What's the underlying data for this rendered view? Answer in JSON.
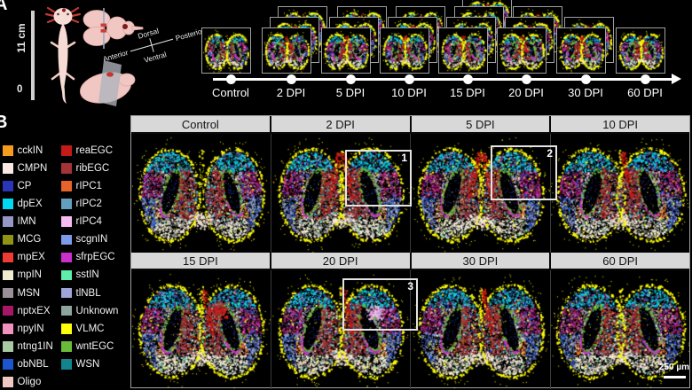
{
  "figure": {
    "panelA": {
      "label": "A",
      "animal_scale": {
        "max": "11 cm",
        "min": "0"
      },
      "compass": {
        "top": "Dorsal",
        "bottom": "Ventral",
        "left": "Anterior",
        "right": "Posterior"
      },
      "timeline": [
        {
          "label": "Control",
          "slides": 1
        },
        {
          "label": "2 DPI",
          "slides": 3
        },
        {
          "label": "5 DPI",
          "slides": 3
        },
        {
          "label": "10 DPI",
          "slides": 3
        },
        {
          "label": "15 DPI",
          "slides": 4
        },
        {
          "label": "20 DPI",
          "slides": 3
        },
        {
          "label": "30 DPI",
          "slides": 2
        },
        {
          "label": "60 DPI",
          "slides": 1
        }
      ]
    },
    "panelB": {
      "label": "B",
      "legend_col1": [
        {
          "label": "cckIN",
          "color": "#F59B1E"
        },
        {
          "label": "CMPN",
          "color": "#FBE9E4"
        },
        {
          "label": "CP",
          "color": "#2A35B8"
        },
        {
          "label": "dpEX",
          "color": "#00D9EF"
        },
        {
          "label": "IMN",
          "color": "#9697C6"
        },
        {
          "label": "MCG",
          "color": "#8F9415"
        },
        {
          "label": "mpEX",
          "color": "#EE3B33"
        },
        {
          "label": "mpIN",
          "color": "#EFEFCF"
        },
        {
          "label": "MSN",
          "color": "#9B9097"
        },
        {
          "label": "nptxEX",
          "color": "#A81765"
        },
        {
          "label": "npyIN",
          "color": "#F191BE"
        },
        {
          "label": "ntng1IN",
          "color": "#A9CBA4"
        },
        {
          "label": "obNBL",
          "color": "#1C56CE"
        },
        {
          "label": "Oligo",
          "color": "#EFC8C4"
        }
      ],
      "legend_col2": [
        {
          "label": "reaEGC",
          "color": "#C41A18"
        },
        {
          "label": "ribEGC",
          "color": "#A33336"
        },
        {
          "label": "rIPC1",
          "color": "#E8632B"
        },
        {
          "label": "rIPC2",
          "color": "#639FBE"
        },
        {
          "label": "rIPC4",
          "color": "#F7BAF3"
        },
        {
          "label": "scgnIN",
          "color": "#7E9BEB"
        },
        {
          "label": "sfrpEGC",
          "color": "#CB2FCC"
        },
        {
          "label": "sstIN",
          "color": "#5FEDA9"
        },
        {
          "label": "tlNBL",
          "color": "#9FA5D6"
        },
        {
          "label": "Unknown",
          "color": "#8EA59C"
        },
        {
          "label": "VLMC",
          "color": "#FDFD0C"
        },
        {
          "label": "wntEGC",
          "color": "#6ABC39"
        },
        {
          "label": "WSN",
          "color": "#13848E"
        }
      ],
      "grid_rows": [
        {
          "headers": [
            "Control",
            "2 DPI",
            "5 DPI",
            "10 DPI"
          ]
        },
        {
          "headers": [
            "15 DPI",
            "20 DPI",
            "30 DPI",
            "60 DPI"
          ]
        }
      ],
      "insets": [
        {
          "number": "1",
          "timepoint": "2 DPI"
        },
        {
          "number": "2",
          "timepoint": "5 DPI"
        },
        {
          "number": "3",
          "timepoint": "20 DPI"
        }
      ],
      "scalebar": "250 µm"
    }
  }
}
